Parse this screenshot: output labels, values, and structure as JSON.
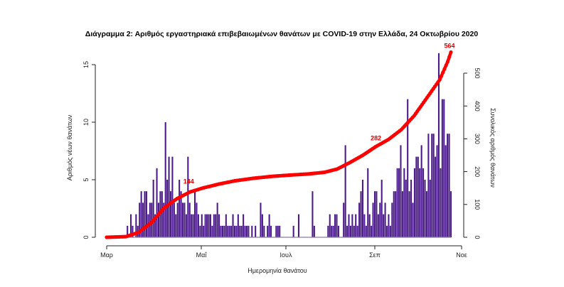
{
  "chart_data": {
    "type": "bar",
    "title": "Διάγραμμα 2: Αριθμός εργαστηριακά επιβεβαιωμένων θανάτων με COVID-19 στην Ελλάδα, 24 Οκτωβρίου 2020",
    "xlabel": "Ημερομηνία θανάτου",
    "ylabel": "Αριθμός νέων θανάτων",
    "y2label": "Συνολικός αριθμός θανάτων",
    "x_ticks": [
      "Μαρ",
      "Μαΐ",
      "Ιουλ",
      "Σεπ",
      "Νοε"
    ],
    "ylim": [
      0,
      17
    ],
    "y_ticks": [
      0,
      5,
      10,
      15
    ],
    "y2lim": [
      0,
      590
    ],
    "y2_ticks": [
      0,
      100,
      200,
      300,
      400,
      500
    ],
    "bar_color": "#4b1a8a",
    "line_color": "#ff0000",
    "series": [
      {
        "name": "Αριθμός νέων θανάτων",
        "kind": "bar",
        "values": [
          0,
          0,
          0,
          0,
          0,
          0,
          0,
          0,
          0,
          0,
          0,
          0,
          1,
          0,
          2,
          1,
          0,
          2,
          1,
          3,
          4,
          3,
          4,
          4,
          2,
          3,
          3,
          5,
          2,
          6,
          3,
          4,
          4,
          3,
          10,
          5,
          7,
          4,
          7,
          3,
          2,
          3,
          5,
          4,
          3,
          3,
          2,
          7,
          3,
          2,
          2,
          4,
          3,
          2,
          1,
          2,
          1,
          2,
          2,
          2,
          2,
          1,
          2,
          2,
          3,
          2,
          1,
          1,
          1,
          2,
          1,
          1,
          1,
          2,
          1,
          1,
          2,
          1,
          1,
          2,
          1,
          1,
          1,
          0,
          1,
          0,
          1,
          0,
          0,
          3,
          2,
          1,
          0,
          1,
          2,
          1,
          0,
          0,
          1,
          1,
          1,
          0,
          0,
          0,
          0,
          0,
          0,
          0,
          1,
          0,
          0,
          2,
          0,
          0,
          0,
          0,
          0,
          0,
          0,
          4,
          1,
          0,
          0,
          0,
          0,
          0,
          0,
          0,
          1,
          2,
          1,
          1,
          2,
          2,
          1,
          0,
          0,
          3,
          8,
          1,
          2,
          1,
          2,
          1,
          2,
          1,
          3,
          4,
          5,
          2,
          1,
          6,
          2,
          1,
          3,
          4,
          4,
          2,
          3,
          5,
          2,
          3,
          1,
          2,
          1,
          3,
          4,
          4,
          6,
          6,
          8,
          4,
          6,
          5,
          12,
          4,
          5,
          3,
          6,
          7,
          7,
          6,
          8,
          6,
          5,
          4,
          9,
          5,
          9,
          9,
          7,
          8,
          16,
          6,
          12,
          12,
          8,
          9,
          9,
          4
        ]
      },
      {
        "name": "Συνολικός αριθμός θανάτων",
        "kind": "line",
        "axis": "right",
        "points": [
          [
            0,
            0
          ],
          [
            12,
            2
          ],
          [
            20,
            15
          ],
          [
            28,
            45
          ],
          [
            36,
            90
          ],
          [
            44,
            118
          ],
          [
            52,
            138
          ],
          [
            60,
            150
          ],
          [
            70,
            162
          ],
          [
            80,
            172
          ],
          [
            92,
            180
          ],
          [
            104,
            186
          ],
          [
            116,
            190
          ],
          [
            126,
            193
          ],
          [
            136,
            198
          ],
          [
            144,
            208
          ],
          [
            152,
            228
          ],
          [
            160,
            250
          ],
          [
            168,
            276
          ],
          [
            176,
            298
          ],
          [
            184,
            328
          ],
          [
            192,
            370
          ],
          [
            200,
            425
          ],
          [
            208,
            480
          ],
          [
            213,
            535
          ],
          [
            215,
            564
          ]
        ]
      }
    ],
    "annotations": [
      {
        "text": "144",
        "x": 53,
        "y2": 150
      },
      {
        "text": "282",
        "x": 170,
        "y2": 282
      },
      {
        "text": "564",
        "x": 215,
        "y2": 564
      }
    ]
  }
}
